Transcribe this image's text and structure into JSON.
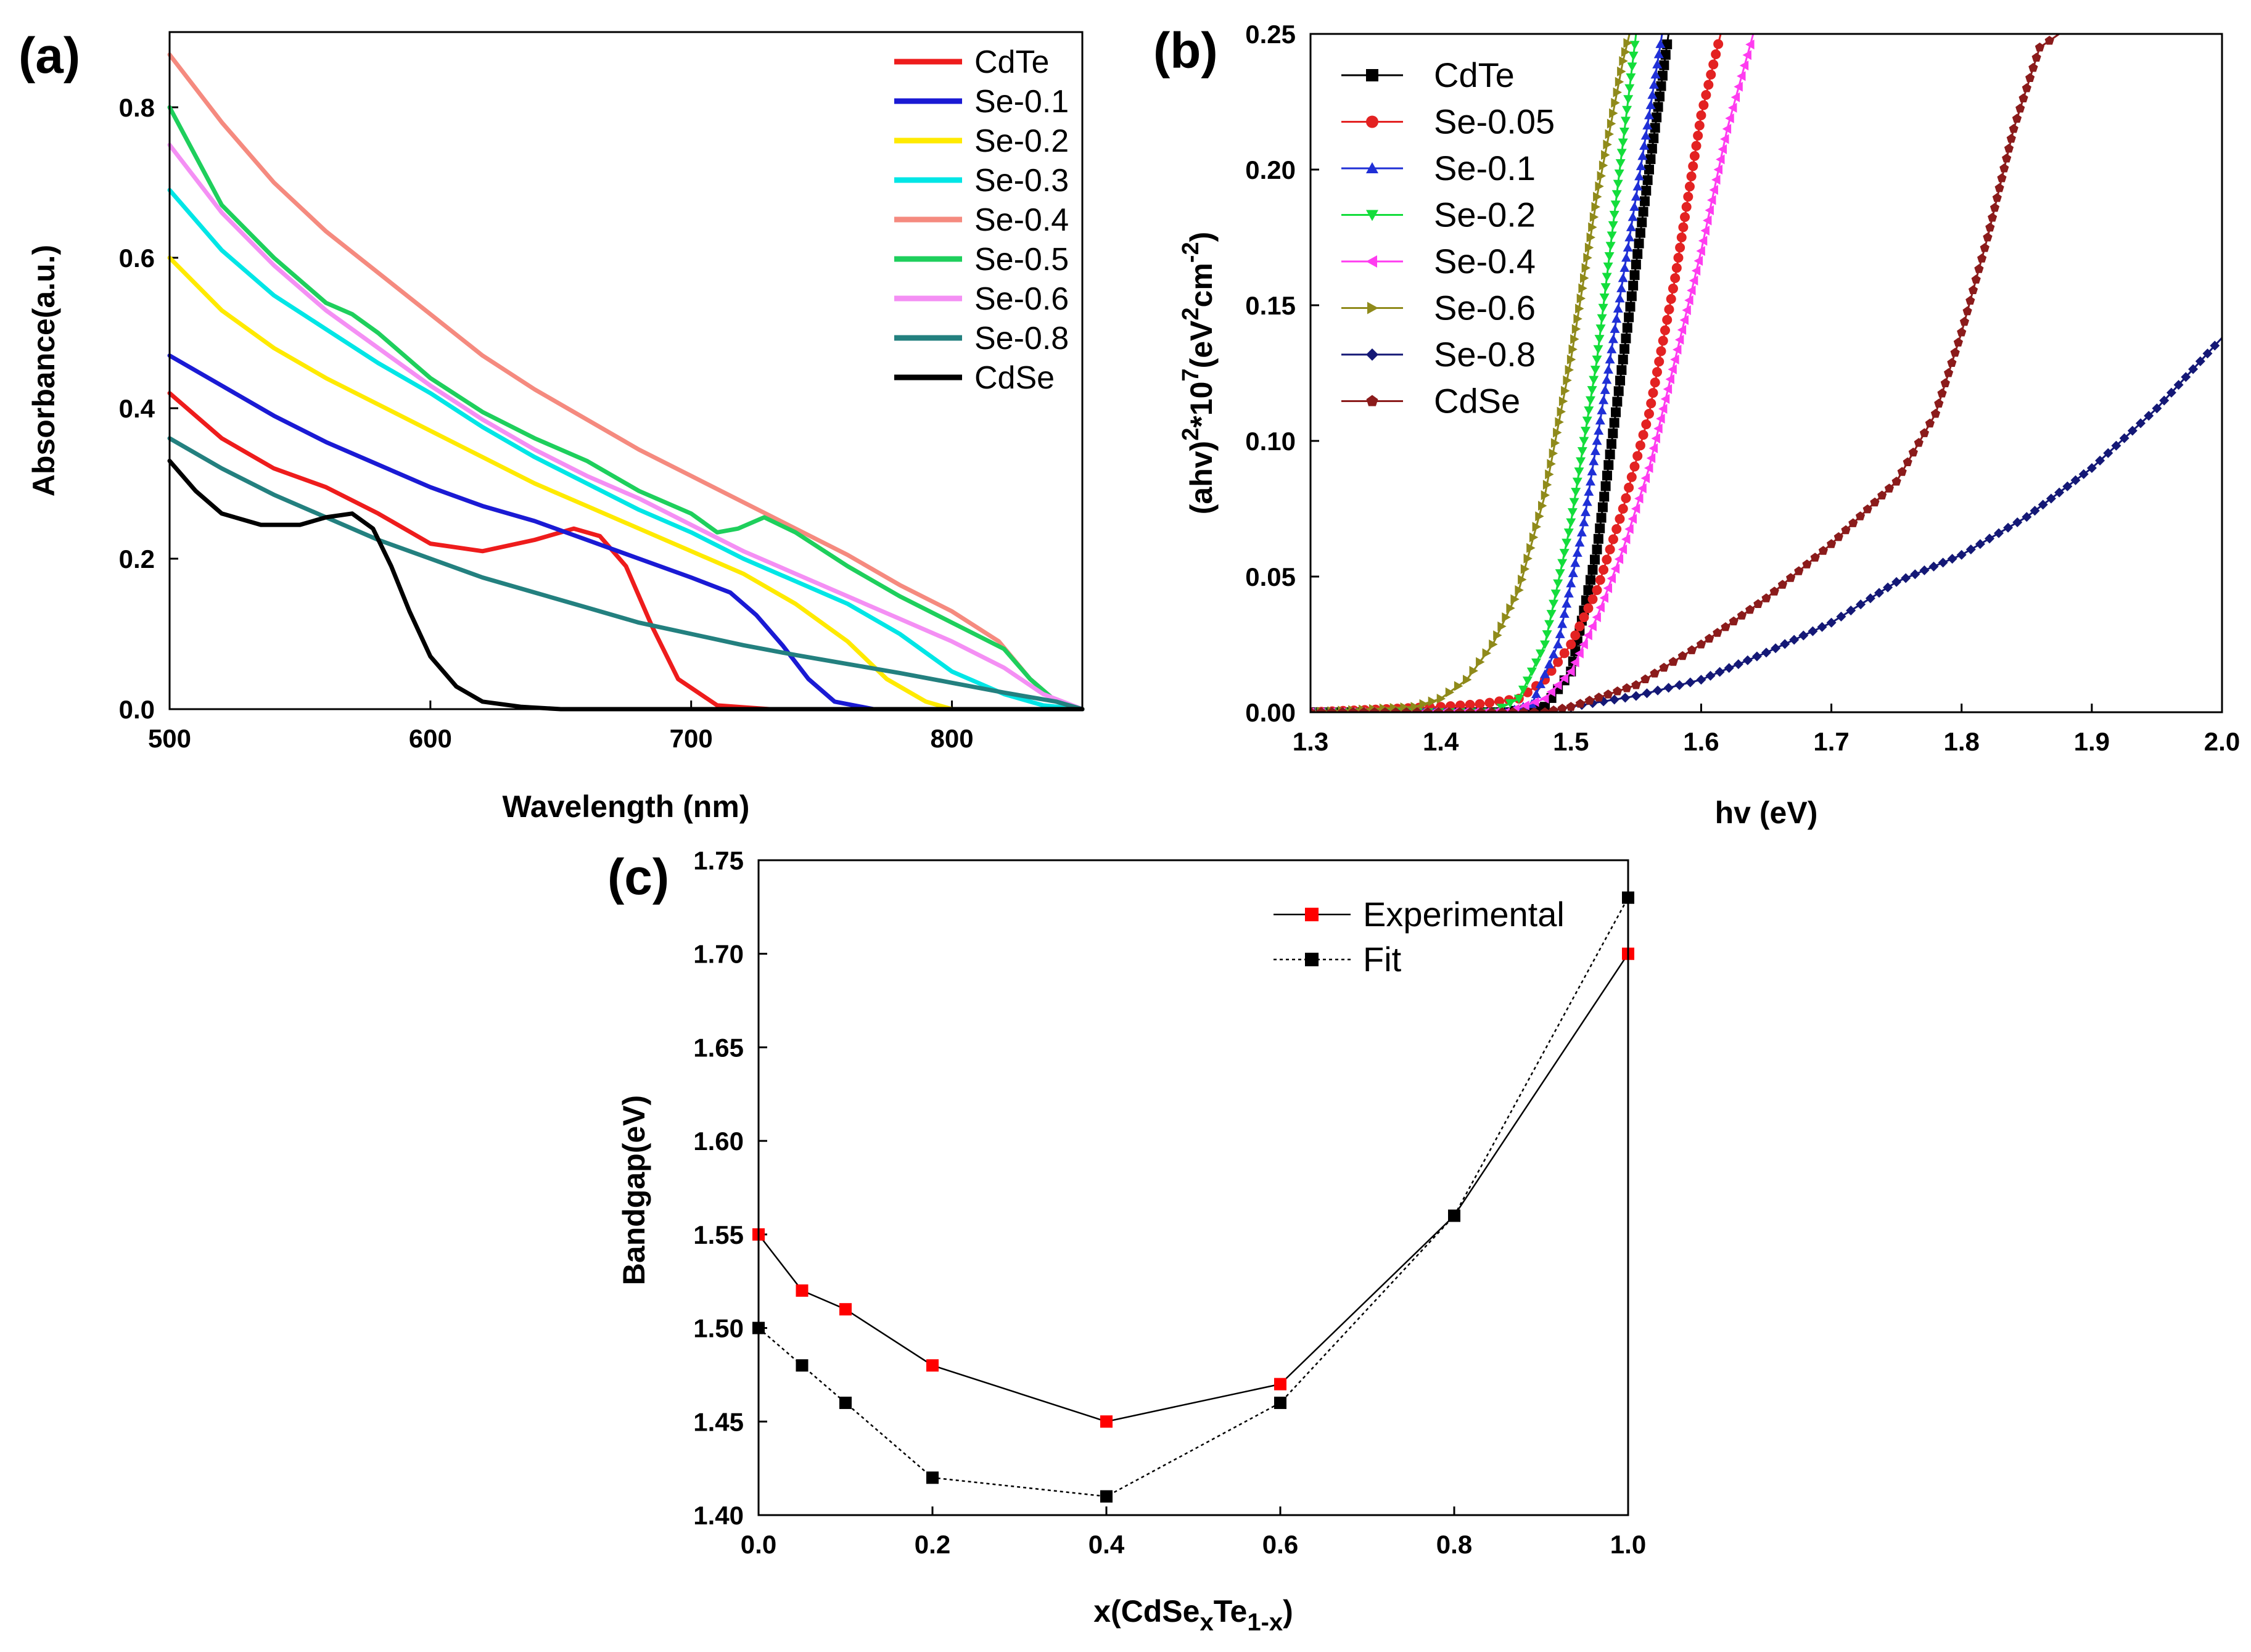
{
  "chart_data": [
    {
      "panel": "(a)",
      "type": "line",
      "xlabel": "Wavelength (nm)",
      "ylabel": "Absorbance(a.u.)",
      "xlim": [
        500,
        850
      ],
      "ylim": [
        0,
        0.9
      ],
      "xticks": [
        500,
        600,
        700,
        800
      ],
      "yticks": [
        0.0,
        0.2,
        0.4,
        0.6,
        0.8
      ],
      "legend_position": "top-right",
      "series": [
        {
          "name": "CdTe",
          "color": "#ee1c1c",
          "x": [
            500,
            520,
            540,
            560,
            580,
            600,
            620,
            640,
            655,
            665,
            675,
            685,
            695,
            710,
            730,
            750,
            850
          ],
          "y": [
            0.42,
            0.36,
            0.32,
            0.295,
            0.26,
            0.22,
            0.21,
            0.225,
            0.24,
            0.23,
            0.19,
            0.11,
            0.04,
            0.005,
            0,
            0,
            0
          ]
        },
        {
          "name": "Se-0.1",
          "color": "#1a1ad4",
          "x": [
            500,
            520,
            540,
            560,
            580,
            600,
            620,
            640,
            660,
            680,
            700,
            715,
            725,
            735,
            745,
            755,
            770,
            850
          ],
          "y": [
            0.47,
            0.43,
            0.39,
            0.355,
            0.325,
            0.295,
            0.27,
            0.25,
            0.225,
            0.2,
            0.175,
            0.155,
            0.125,
            0.085,
            0.04,
            0.01,
            0,
            0
          ]
        },
        {
          "name": "Se-0.2",
          "color": "#ffea00",
          "x": [
            500,
            520,
            540,
            560,
            580,
            600,
            620,
            640,
            660,
            680,
            700,
            720,
            740,
            760,
            775,
            790,
            800,
            850
          ],
          "y": [
            0.6,
            0.53,
            0.48,
            0.44,
            0.405,
            0.37,
            0.335,
            0.3,
            0.27,
            0.24,
            0.21,
            0.18,
            0.14,
            0.09,
            0.04,
            0.01,
            0,
            0
          ]
        },
        {
          "name": "Se-0.3",
          "color": "#00e6e6",
          "x": [
            500,
            520,
            540,
            560,
            580,
            600,
            620,
            640,
            660,
            680,
            700,
            720,
            740,
            760,
            780,
            800,
            820,
            835,
            850
          ],
          "y": [
            0.69,
            0.61,
            0.55,
            0.505,
            0.46,
            0.42,
            0.375,
            0.335,
            0.3,
            0.265,
            0.235,
            0.2,
            0.17,
            0.14,
            0.1,
            0.05,
            0.02,
            0.005,
            0
          ]
        },
        {
          "name": "Se-0.4",
          "color": "#f58a7f",
          "x": [
            500,
            520,
            540,
            560,
            580,
            600,
            620,
            640,
            660,
            680,
            700,
            720,
            740,
            760,
            780,
            800,
            818,
            830,
            840,
            850
          ],
          "y": [
            0.87,
            0.78,
            0.7,
            0.635,
            0.58,
            0.525,
            0.47,
            0.425,
            0.385,
            0.345,
            0.31,
            0.275,
            0.24,
            0.205,
            0.165,
            0.13,
            0.09,
            0.04,
            0.01,
            0
          ]
        },
        {
          "name": "Se-0.5",
          "color": "#1ecf5c",
          "x": [
            500,
            520,
            540,
            560,
            570,
            580,
            600,
            620,
            640,
            660,
            680,
            700,
            710,
            718,
            728,
            740,
            760,
            780,
            800,
            820,
            830,
            840,
            850
          ],
          "y": [
            0.8,
            0.67,
            0.6,
            0.54,
            0.525,
            0.5,
            0.44,
            0.395,
            0.36,
            0.33,
            0.29,
            0.26,
            0.235,
            0.24,
            0.255,
            0.235,
            0.19,
            0.15,
            0.115,
            0.08,
            0.04,
            0.01,
            0
          ]
        },
        {
          "name": "Se-0.6",
          "color": "#f48ff4",
          "x": [
            500,
            520,
            540,
            560,
            580,
            600,
            620,
            640,
            660,
            680,
            700,
            720,
            740,
            760,
            780,
            800,
            820,
            835,
            850
          ],
          "y": [
            0.75,
            0.66,
            0.59,
            0.53,
            0.48,
            0.43,
            0.385,
            0.345,
            0.31,
            0.28,
            0.245,
            0.21,
            0.18,
            0.15,
            0.12,
            0.09,
            0.055,
            0.02,
            0
          ]
        },
        {
          "name": "Se-0.8",
          "color": "#23807f",
          "x": [
            500,
            520,
            540,
            560,
            580,
            600,
            620,
            640,
            660,
            680,
            700,
            720,
            740,
            760,
            780,
            800,
            820,
            840,
            850
          ],
          "y": [
            0.36,
            0.32,
            0.285,
            0.255,
            0.225,
            0.2,
            0.175,
            0.155,
            0.135,
            0.115,
            0.1,
            0.085,
            0.072,
            0.06,
            0.048,
            0.035,
            0.022,
            0.01,
            0
          ]
        },
        {
          "name": "CdSe",
          "color": "#000000",
          "x": [
            500,
            510,
            520,
            535,
            550,
            560,
            570,
            578,
            585,
            592,
            600,
            610,
            620,
            635,
            650,
            700,
            850
          ],
          "y": [
            0.33,
            0.29,
            0.26,
            0.245,
            0.245,
            0.255,
            0.26,
            0.24,
            0.19,
            0.13,
            0.07,
            0.03,
            0.01,
            0.003,
            0,
            0,
            0
          ]
        }
      ]
    },
    {
      "panel": "(b)",
      "type": "line",
      "xlabel": "hv (eV)",
      "ylabel_parts": [
        "(ahv)",
        "2",
        "*10",
        "7",
        "(eV",
        "2",
        "cm",
        "-2",
        ")"
      ],
      "xlim": [
        1.3,
        2.0
      ],
      "ylim": [
        0,
        0.25
      ],
      "xticks": [
        1.3,
        1.4,
        1.5,
        1.6,
        1.7,
        1.8,
        1.9,
        2.0
      ],
      "yticks": [
        0.0,
        0.05,
        0.1,
        0.15,
        0.2,
        0.25
      ],
      "legend_position": "top-left",
      "series": [
        {
          "name": "CdTe",
          "color": "#000000",
          "marker": "square",
          "x": [
            1.3,
            1.45,
            1.48,
            1.5,
            1.52,
            1.54,
            1.56,
            1.575
          ],
          "y": [
            0,
            0,
            0.002,
            0.015,
            0.06,
            0.13,
            0.2,
            0.25
          ]
        },
        {
          "name": "Se-0.05",
          "color": "#e32222",
          "marker": "circle",
          "x": [
            1.3,
            1.4,
            1.43,
            1.46,
            1.48,
            1.5,
            1.52,
            1.54,
            1.56,
            1.58,
            1.6,
            1.615
          ],
          "y": [
            0,
            0.002,
            0.003,
            0.005,
            0.012,
            0.025,
            0.045,
            0.075,
            0.11,
            0.16,
            0.22,
            0.25
          ]
        },
        {
          "name": "Se-0.1",
          "color": "#1f2fd6",
          "marker": "triangle-up",
          "x": [
            1.3,
            1.45,
            1.47,
            1.49,
            1.51,
            1.53,
            1.55,
            1.57
          ],
          "y": [
            0,
            0,
            0.003,
            0.025,
            0.07,
            0.13,
            0.19,
            0.25
          ]
        },
        {
          "name": "Se-0.2",
          "color": "#13dd3b",
          "marker": "triangle-down",
          "x": [
            1.3,
            1.44,
            1.46,
            1.48,
            1.5,
            1.52,
            1.54,
            1.55
          ],
          "y": [
            0,
            0,
            0.005,
            0.025,
            0.07,
            0.13,
            0.21,
            0.25
          ]
        },
        {
          "name": "Se-0.4",
          "color": "#ff3cf0",
          "marker": "triangle-left",
          "x": [
            1.3,
            1.45,
            1.48,
            1.5,
            1.52,
            1.54,
            1.56,
            1.58,
            1.6,
            1.62,
            1.64
          ],
          "y": [
            0,
            0,
            0.005,
            0.015,
            0.035,
            0.06,
            0.09,
            0.13,
            0.17,
            0.215,
            0.25
          ]
        },
        {
          "name": "Se-0.6",
          "color": "#8f8a1a",
          "marker": "triangle-right",
          "x": [
            1.3,
            1.38,
            1.4,
            1.42,
            1.44,
            1.46,
            1.48,
            1.5,
            1.52,
            1.54,
            1.545
          ],
          "y": [
            0,
            0.002,
            0.005,
            0.012,
            0.025,
            0.045,
            0.08,
            0.13,
            0.19,
            0.24,
            0.25
          ]
        },
        {
          "name": "Se-0.8",
          "color": "#141876",
          "marker": "diamond",
          "x": [
            1.3,
            1.48,
            1.5,
            1.55,
            1.6,
            1.65,
            1.7,
            1.73,
            1.75,
            1.8,
            1.85,
            1.9,
            1.95,
            2.0
          ],
          "y": [
            0,
            0,
            0.002,
            0.006,
            0.012,
            0.022,
            0.033,
            0.042,
            0.048,
            0.058,
            0.072,
            0.09,
            0.112,
            0.138
          ]
        },
        {
          "name": "CdSe",
          "color": "#8b1b1b",
          "marker": "pentagon",
          "x": [
            1.3,
            1.48,
            1.5,
            1.55,
            1.6,
            1.65,
            1.7,
            1.75,
            1.78,
            1.8,
            1.82,
            1.84,
            1.86,
            1.875
          ],
          "y": [
            0,
            0,
            0.002,
            0.01,
            0.025,
            0.042,
            0.062,
            0.085,
            0.11,
            0.14,
            0.175,
            0.215,
            0.245,
            0.25
          ]
        }
      ]
    },
    {
      "panel": "(c)",
      "type": "line",
      "xlabel_parts": [
        "x(CdSe",
        "x",
        "Te",
        "1-x",
        ")"
      ],
      "ylabel": "Bandgap(eV)",
      "xlim": [
        0.0,
        1.0
      ],
      "ylim": [
        1.4,
        1.75
      ],
      "xticks": [
        0.0,
        0.2,
        0.4,
        0.6,
        0.8,
        1.0
      ],
      "yticks": [
        1.4,
        1.45,
        1.5,
        1.55,
        1.6,
        1.65,
        1.7,
        1.75
      ],
      "legend_position": "top-right",
      "series": [
        {
          "name": "Experimental",
          "marker_color": "#ff0000",
          "line": "solid",
          "x": [
            0.0,
            0.05,
            0.1,
            0.2,
            0.4,
            0.6,
            0.8,
            1.0
          ],
          "y": [
            1.55,
            1.52,
            1.51,
            1.48,
            1.45,
            1.47,
            1.56,
            1.7
          ]
        },
        {
          "name": "Fit",
          "marker_color": "#000000",
          "line": "dotted",
          "x": [
            0.0,
            0.05,
            0.1,
            0.2,
            0.4,
            0.6,
            0.8,
            1.0
          ],
          "y": [
            1.5,
            1.48,
            1.46,
            1.42,
            1.41,
            1.46,
            1.56,
            1.73
          ]
        }
      ]
    }
  ]
}
